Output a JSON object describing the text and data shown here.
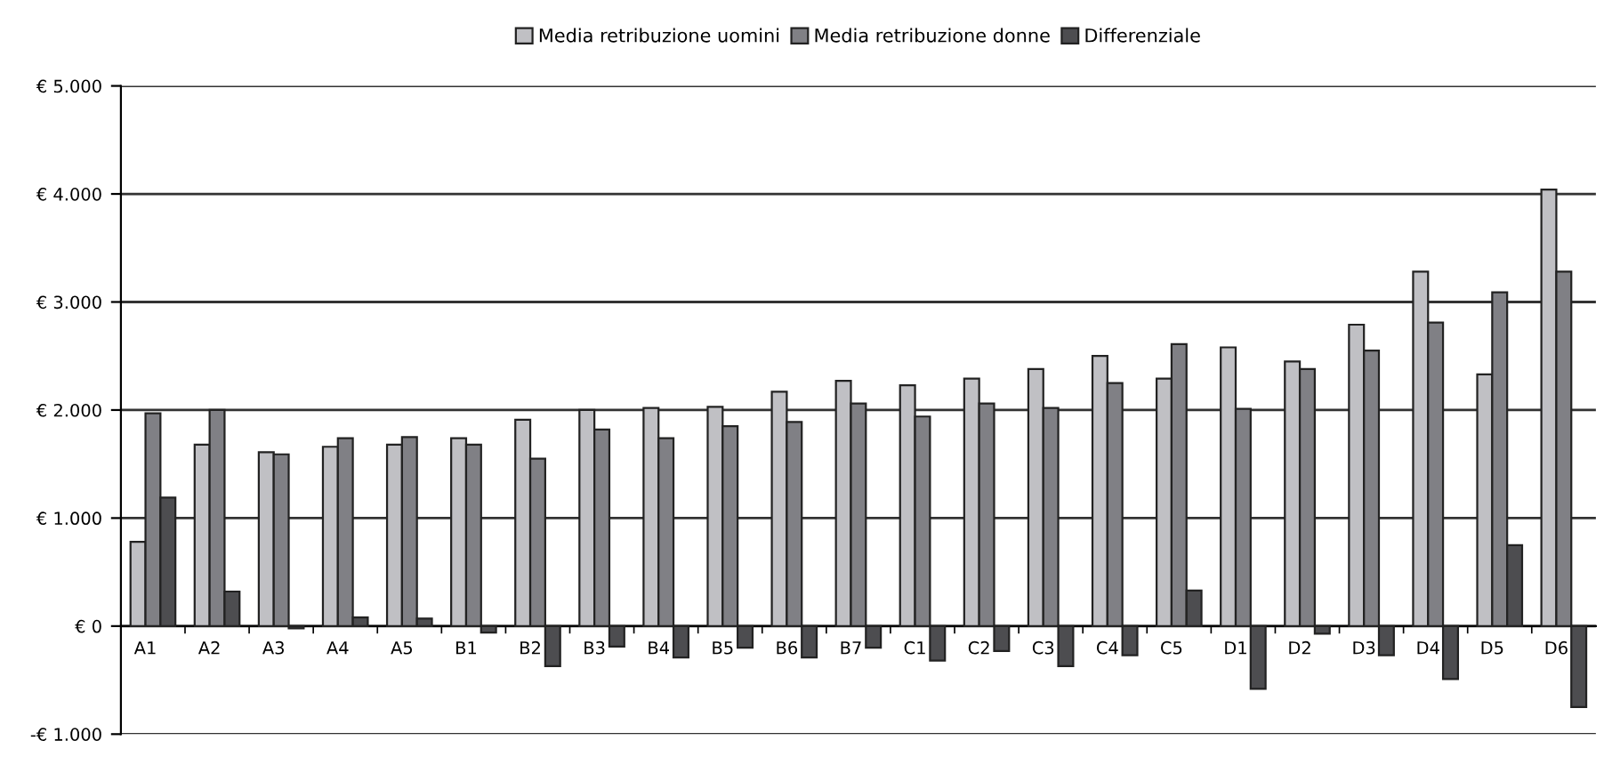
{
  "chart_data": {
    "type": "bar",
    "categories": [
      "A1",
      "A2",
      "A3",
      "A4",
      "A5",
      "B1",
      "B2",
      "B3",
      "B4",
      "B5",
      "B6",
      "B7",
      "C1",
      "C2",
      "C3",
      "C4",
      "C5",
      "D1",
      "D2",
      "D3",
      "D4",
      "D5",
      "D6"
    ],
    "series": [
      {
        "name": "Media retribuzione uomini",
        "color": "#c0c0c4",
        "values": [
          780,
          1680,
          1610,
          1660,
          1680,
          1740,
          1910,
          2000,
          2020,
          2030,
          2170,
          2270,
          2230,
          2290,
          2380,
          2500,
          2290,
          2580,
          2450,
          2790,
          3280,
          2330,
          4040
        ]
      },
      {
        "name": "Media retribuzione donne",
        "color": "#808085",
        "values": [
          1970,
          2000,
          1590,
          1740,
          1750,
          1680,
          1550,
          1820,
          1740,
          1850,
          1890,
          2060,
          1940,
          2060,
          2020,
          2250,
          2610,
          2010,
          2380,
          2550,
          2810,
          3090,
          3280
        ]
      },
      {
        "name": "Differenziale",
        "color": "#4d4d50",
        "values": [
          1190,
          320,
          -20,
          80,
          70,
          -60,
          -370,
          -190,
          -290,
          -200,
          -290,
          -200,
          -320,
          -230,
          -370,
          -270,
          330,
          -580,
          -70,
          -270,
          -490,
          750,
          -750
        ]
      }
    ],
    "ylim": [
      -1000,
      5000
    ],
    "yticks": [
      {
        "value": -1000,
        "label": "-€ 1.000"
      },
      {
        "value": 0,
        "label": "€ 0"
      },
      {
        "value": 1000,
        "label": "€ 1.000"
      },
      {
        "value": 2000,
        "label": "€ 2.000"
      },
      {
        "value": 3000,
        "label": "€ 3.000"
      },
      {
        "value": 4000,
        "label": "€ 4.000"
      },
      {
        "value": 5000,
        "label": "€ 5.000"
      }
    ],
    "grid": "y",
    "legend": "top"
  }
}
